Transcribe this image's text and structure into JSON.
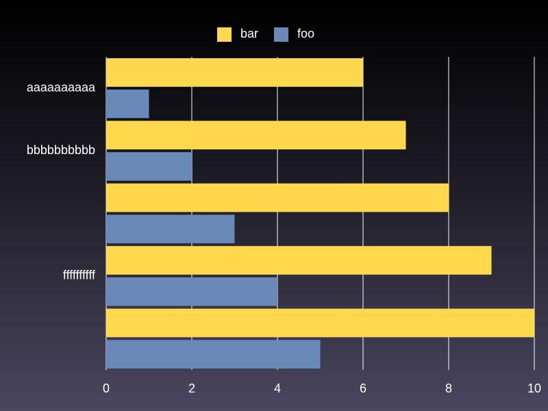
{
  "chart_data": {
    "type": "bar",
    "orientation": "horizontal",
    "categories": [
      "aaaaaaaaaa",
      "bbbbbbbbbb",
      "",
      "ffffffffff",
      ""
    ],
    "series": [
      {
        "name": "bar",
        "color": "#ffd84d",
        "values": [
          6,
          7,
          8,
          9,
          10
        ]
      },
      {
        "name": "foo",
        "color": "#6a88b8",
        "values": [
          1,
          2,
          3,
          4,
          5
        ]
      }
    ],
    "xlim": [
      0,
      10
    ],
    "xticks": [
      0,
      2,
      4,
      6,
      8,
      10
    ],
    "grid": true,
    "legend_position": "top-center",
    "title": "",
    "xlabel": "",
    "ylabel": ""
  }
}
